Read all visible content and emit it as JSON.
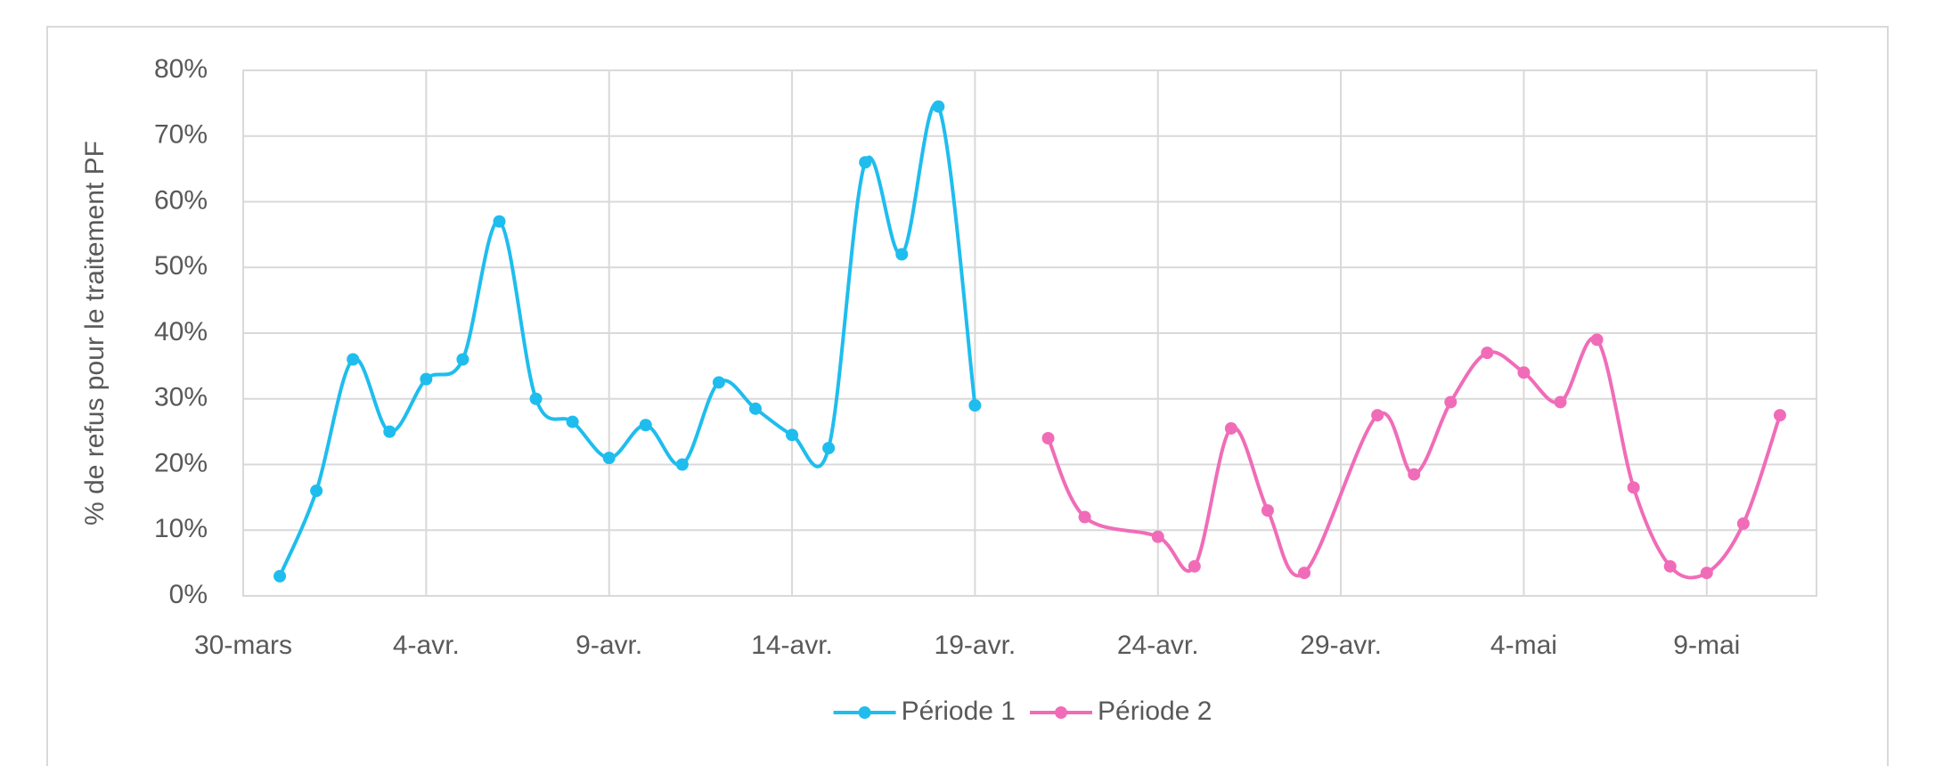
{
  "chart_data": {
    "type": "line",
    "y_label": "% de refus pour le traitement PF",
    "categories": [
      "30-mars",
      null,
      null,
      null,
      null,
      "4-avr.",
      null,
      null,
      null,
      null,
      "9-avr.",
      null,
      null,
      null,
      null,
      "14-avr.",
      null,
      null,
      null,
      null,
      "19-avr.",
      null,
      null,
      null,
      null,
      "24-avr.",
      null,
      null,
      null,
      null,
      "29-avr.",
      null,
      null,
      null,
      null,
      "4-mai",
      null,
      null,
      null,
      null,
      "9-mai",
      null,
      null,
      null
    ],
    "series": [
      {
        "name": "Période 1",
        "color": "#1fbdee",
        "values": [
          null,
          3,
          16,
          36,
          25,
          33,
          36,
          57,
          30,
          26.5,
          21,
          26,
          20,
          32.5,
          28.5,
          24.5,
          22.5,
          66,
          52,
          74.5,
          29,
          null,
          null,
          null,
          null,
          null,
          null,
          null,
          null,
          null,
          null,
          null,
          null,
          null,
          null,
          null,
          null,
          null,
          null,
          null,
          null,
          null,
          null,
          null
        ]
      },
      {
        "name": "Période 2",
        "color": "#f06cb8",
        "values": [
          null,
          null,
          null,
          null,
          null,
          null,
          null,
          null,
          null,
          null,
          null,
          null,
          null,
          null,
          null,
          null,
          null,
          null,
          null,
          null,
          null,
          null,
          24,
          12,
          null,
          9,
          4.5,
          25.5,
          13,
          3.5,
          null,
          27.5,
          18.5,
          29.5,
          37,
          34,
          29.5,
          39,
          16.5,
          4.5,
          3.5,
          11,
          27.5,
          null
        ]
      }
    ],
    "ylim": [
      0,
      80
    ],
    "yticks": [
      {
        "value": 0,
        "label": "0%"
      },
      {
        "value": 10,
        "label": "10%"
      },
      {
        "value": 20,
        "label": "20%"
      },
      {
        "value": 30,
        "label": "30%"
      },
      {
        "value": 40,
        "label": "40%"
      },
      {
        "value": 50,
        "label": "50%"
      },
      {
        "value": 60,
        "label": "60%"
      },
      {
        "value": 70,
        "label": "70%"
      },
      {
        "value": 80,
        "label": "80%"
      }
    ],
    "grid": true,
    "smooth": true,
    "connect_gaps": true,
    "legend": "bottom"
  }
}
